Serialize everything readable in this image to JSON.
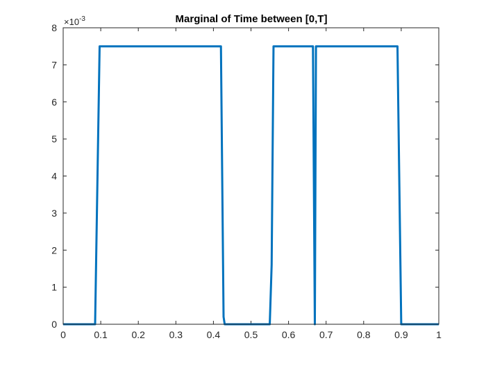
{
  "chart_data": {
    "type": "line",
    "title": "Marginal of Time between [0,T]",
    "xlabel": "",
    "ylabel": "",
    "xlim": [
      0,
      1
    ],
    "ylim": [
      0,
      0.008
    ],
    "y_exponent_label": "×10",
    "y_exponent_power": "-3",
    "grid": false,
    "box": true,
    "x_ticks": [
      0,
      0.1,
      0.2,
      0.3,
      0.4,
      0.5,
      0.6,
      0.7,
      0.8,
      0.9,
      1
    ],
    "x_tick_labels": [
      "0",
      "0.1",
      "0.2",
      "0.3",
      "0.4",
      "0.5",
      "0.6",
      "0.7",
      "0.8",
      "0.9",
      "1"
    ],
    "y_ticks": [
      0,
      0.001,
      0.002,
      0.003,
      0.004,
      0.005,
      0.006,
      0.007,
      0.008
    ],
    "y_tick_labels": [
      "0",
      "1",
      "2",
      "3",
      "4",
      "5",
      "6",
      "7",
      "8"
    ],
    "colors": {
      "line": "#0072BD",
      "axis": "#262626"
    },
    "series": [
      {
        "x": [
          0,
          0.085,
          0.093,
          0.097,
          0.42,
          0.427,
          0.43,
          0.44,
          0.55,
          0.555,
          0.56,
          0.665,
          0.67,
          0.673,
          0.68,
          0.89,
          0.9,
          1.0
        ],
        "y": [
          0,
          0,
          0.005,
          0.0075,
          0.0075,
          0.0002,
          0,
          0,
          0,
          0.0016,
          0.0075,
          0.0075,
          0,
          0.0075,
          0.0075,
          0.0075,
          0,
          0
        ]
      }
    ]
  }
}
